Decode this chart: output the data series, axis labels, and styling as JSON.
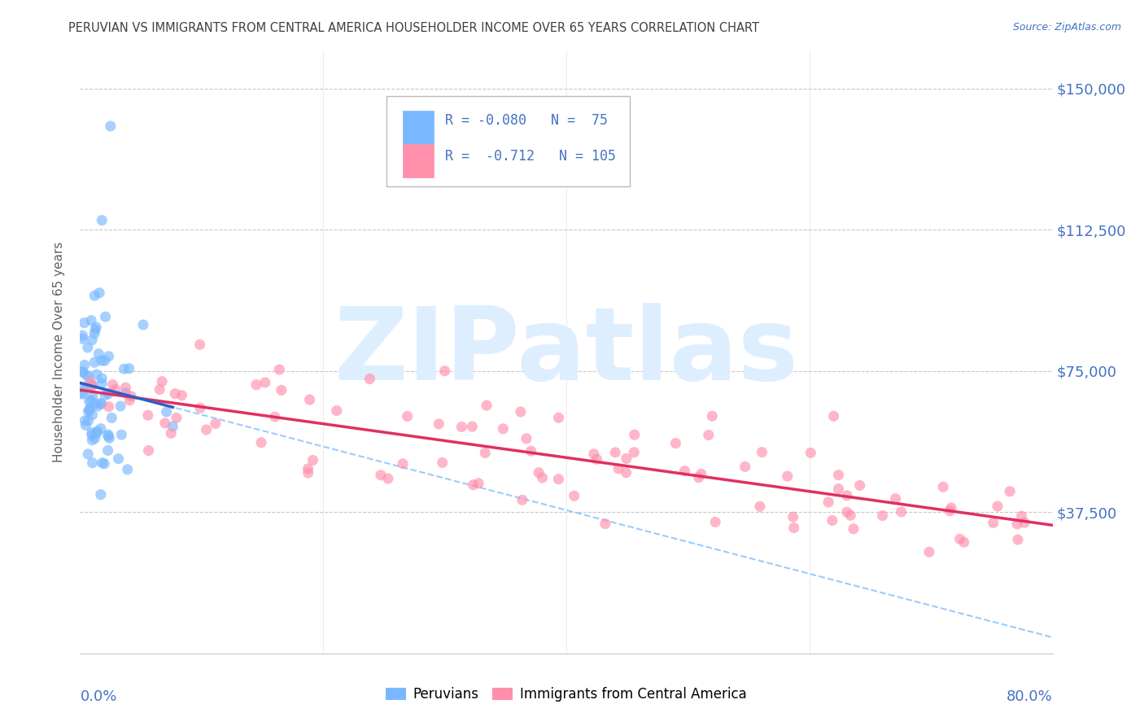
{
  "title": "PERUVIAN VS IMMIGRANTS FROM CENTRAL AMERICA HOUSEHOLDER INCOME OVER 65 YEARS CORRELATION CHART",
  "source": "Source: ZipAtlas.com",
  "ylabel": "Householder Income Over 65 years",
  "xlim": [
    0,
    0.8
  ],
  "ylim": [
    0,
    160000
  ],
  "r_blue": -0.08,
  "n_blue": 75,
  "r_pink": -0.712,
  "n_pink": 105,
  "blue_color": "#79B8FF",
  "pink_color": "#FF8FAB",
  "blue_line_color": "#2F5EC4",
  "pink_line_color": "#E03060",
  "dash_line_color": "#99CCFF",
  "background_color": "#FFFFFF",
  "grid_color": "#C8C8C8",
  "axis_label_color": "#4472C4",
  "title_color": "#404040",
  "watermark_color": "#DDEEFF",
  "watermark_text": "ZIPatlas",
  "ytick_vals": [
    37500,
    75000,
    112500,
    150000
  ],
  "ytick_labels": [
    "$37,500",
    "$75,000",
    "$112,500",
    "$150,000"
  ]
}
